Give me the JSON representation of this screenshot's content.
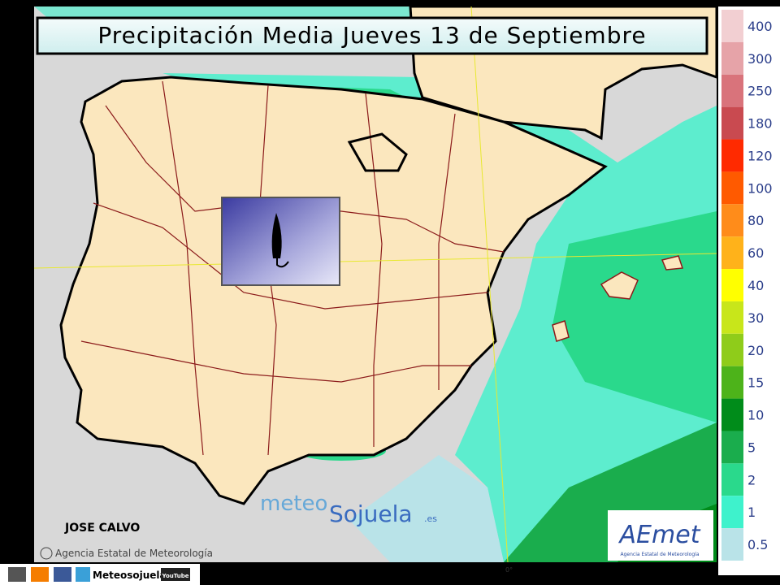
{
  "title": "Precipitación Media Jueves 13 de Septiembre",
  "legend": [
    {
      "label": "400",
      "color": "#f2cfd2"
    },
    {
      "label": "300",
      "color": "#e6a3a8"
    },
    {
      "label": "250",
      "color": "#d9737b"
    },
    {
      "label": "180",
      "color": "#c94a50"
    },
    {
      "label": "120",
      "color": "#ff2a00"
    },
    {
      "label": "100",
      "color": "#ff5a00"
    },
    {
      "label": "80",
      "color": "#ff8c1a"
    },
    {
      "label": "60",
      "color": "#ffb21a"
    },
    {
      "label": "40",
      "color": "#ffff00"
    },
    {
      "label": "30",
      "color": "#c8e61a"
    },
    {
      "label": "20",
      "color": "#8fcc1a"
    },
    {
      "label": "15",
      "color": "#4db31a"
    },
    {
      "label": "10",
      "color": "#008c1a"
    },
    {
      "label": "5",
      "color": "#1aad4d"
    },
    {
      "label": "2",
      "color": "#2ad98c"
    },
    {
      "label": "1",
      "color": "#3ef2cc"
    },
    {
      "label": "0.5",
      "color": "#b9e3e8"
    }
  ],
  "author": "JOSE CALVO",
  "credit": "Agencia Estatal de Meteorología",
  "watermark": {
    "part1": "meteo",
    "part2": "Sojuela",
    "part3": ".es"
  },
  "logo": {
    "name": "AEmet",
    "subtitle": "Agencia Estatal de Meteorología"
  },
  "footer": {
    "site": "Meteosojuela",
    "youtube": "YouTube"
  },
  "meridian": "0°"
}
